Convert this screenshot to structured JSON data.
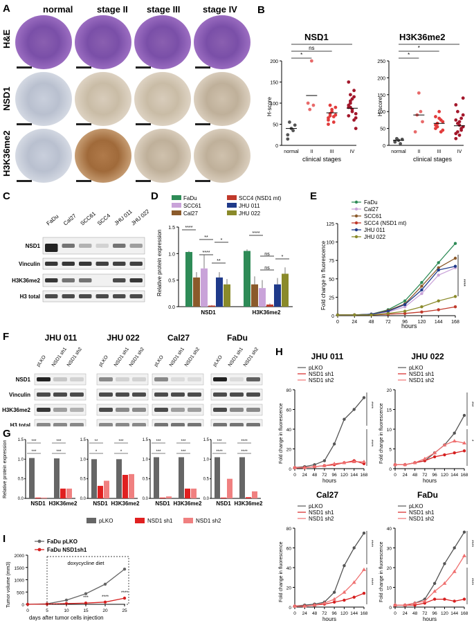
{
  "panelA": {
    "label": "A",
    "columns": [
      "normal",
      "stage II",
      "stage III",
      "stage IV"
    ],
    "rows": [
      "H&E",
      "NSD1",
      "H3K36me2"
    ]
  },
  "panelB": {
    "label": "B",
    "xaxis_caption": "clinical stages",
    "ylabel": "H-score",
    "charts": [
      {
        "title": "NSD1",
        "categories": [
          "normal",
          "II",
          "III",
          "IV"
        ],
        "sig": [
          "*",
          "ns",
          "*"
        ]
      },
      {
        "title": "H3K36me2",
        "categories": [
          "normal",
          "II",
          "III",
          "IV"
        ],
        "sig": [
          "*",
          "*",
          "*"
        ]
      }
    ]
  },
  "panelC": {
    "label": "C",
    "lanes": [
      "FaDu",
      "Cal27",
      "SCC61",
      "SCC4",
      "JHU 011",
      "JHU 022"
    ],
    "rows": [
      "NSD1",
      "Vinculin",
      "H3K36me2",
      "H3 total"
    ]
  },
  "panelD": {
    "label": "D",
    "legend": [
      "FaDu",
      "SCC61",
      "Cal27",
      "SCC4 (NSD1 mt)",
      "JHU 011",
      "JHU 022"
    ],
    "sig": [
      "****",
      "**",
      "*",
      "****",
      "**",
      "****",
      "ns",
      "ns",
      "*"
    ]
  },
  "panelE": {
    "label": "E",
    "legend": [
      "FaDu",
      "Cal27",
      "SCC61",
      "SCC4 (NSD1 mt)",
      "JHU 011",
      "JHU 022"
    ],
    "sig": "****"
  },
  "panelF": {
    "label": "F",
    "groups": [
      "JHU 011",
      "JHU 022",
      "Cal27",
      "FaDu"
    ],
    "lanes": [
      "pLKO",
      "NSD1 sh1",
      "NSD1 sh2"
    ],
    "rows": [
      "NSD1",
      "Vinculin",
      "H3K36me2",
      "H3 total"
    ]
  },
  "panelG": {
    "label": "G",
    "legend": [
      "pLKO",
      "NSD1 sh1",
      "NSD1 sh2"
    ],
    "sig": [
      [
        "***",
        "***",
        "***",
        "***"
      ],
      [
        "**",
        "***",
        "*",
        "*"
      ],
      [
        "***",
        "***",
        "***",
        "***"
      ],
      [
        "***",
        "****",
        "****",
        "****"
      ]
    ]
  },
  "panelH": {
    "label": "H",
    "legend": [
      "pLKO",
      "NSD1 sh1",
      "NSD1 sh2"
    ],
    "sig": [
      [
        "****",
        "****"
      ],
      [
        "***",
        "*"
      ],
      [
        "****",
        "****"
      ],
      [
        "****",
        "****"
      ]
    ]
  },
  "panelI": {
    "label": "I",
    "legend": [
      "FaDu pLKO",
      "FaDu NSD1sh1"
    ],
    "annotation": "doxycycline diet",
    "sig": [
      "***",
      "****",
      "****"
    ]
  },
  "chart_data": [
    {
      "type": "scatter",
      "title": "NSD1",
      "categories": [
        "normal",
        "II",
        "III",
        "IV"
      ],
      "ylabel": "H-score",
      "xlabel": "clinical stages",
      "ylim": [
        0,
        200
      ],
      "yticks": [
        0,
        50,
        100,
        150,
        200
      ],
      "series": [
        {
          "values": [
            [
              25,
              55,
              40,
              35,
              48,
              15
            ],
            [
              100,
              85,
              200,
              95
            ],
            [
              65,
              70,
              80,
              55,
              90,
              60,
              75,
              85,
              68,
              72,
              50,
              95
            ],
            [
              90,
              120,
              110,
              60,
              75,
              95,
              100,
              85,
              130,
              40,
              70,
              105,
              80,
              115,
              65,
              150,
              90
            ]
          ]
        }
      ],
      "means": [
        40,
        118,
        77,
        88
      ]
    },
    {
      "type": "scatter",
      "title": "H3K36me2",
      "categories": [
        "normal",
        "II",
        "III",
        "IV"
      ],
      "ylabel": "H-score",
      "xlabel": "clinical stages",
      "ylim": [
        0,
        250
      ],
      "yticks": [
        0,
        50,
        100,
        150,
        200,
        250
      ],
      "series": [
        {
          "values": [
            [
              10,
              20,
              15,
              5,
              18,
              12
            ],
            [
              40,
              90,
              155,
              100,
              70
            ],
            [
              50,
              65,
              80,
              40,
              70,
              60,
              55,
              100,
              75,
              45,
              85,
              65
            ],
            [
              20,
              40,
              60,
              80,
              55,
              35,
              100,
              70,
              45,
              90,
              120,
              65,
              30,
              50,
              140,
              75
            ]
          ]
        }
      ],
      "means": [
        15,
        90,
        65,
        58
      ]
    },
    {
      "type": "bar",
      "title": "",
      "categories": [
        "NSD1",
        "H3K36me2"
      ],
      "ylabel": "Relative protein expression",
      "ylim": [
        0,
        1.5
      ],
      "yticks": [
        0,
        0.5,
        1.0,
        1.5
      ],
      "series": [
        {
          "name": "FaDu",
          "values": [
            1.03,
            1.05
          ]
        },
        {
          "name": "Cal27",
          "values": [
            0.55,
            0.42
          ]
        },
        {
          "name": "SCC61",
          "values": [
            0.72,
            0.35
          ]
        },
        {
          "name": "SCC4 (NSD1 mt)",
          "values": [
            0.02,
            0.04
          ]
        },
        {
          "name": "JHU 011",
          "values": [
            0.55,
            0.42
          ]
        },
        {
          "name": "JHU 022",
          "values": [
            0.42,
            0.62
          ]
        }
      ],
      "errors": [
        [
          0.02,
          0.03
        ],
        [
          0.1,
          0.15
        ],
        [
          0.25,
          0.15
        ],
        [
          0.01,
          0.02
        ],
        [
          0.1,
          0.12
        ],
        [
          0.1,
          0.12
        ]
      ]
    },
    {
      "type": "line",
      "title": "",
      "x": [
        0,
        24,
        48,
        72,
        96,
        120,
        144,
        168
      ],
      "xlabel": "hours",
      "ylabel": "Fold change in fluorescence",
      "ylim": [
        0,
        125
      ],
      "yticks": [
        0,
        25,
        50,
        75,
        100,
        125
      ],
      "series": [
        {
          "name": "FaDu",
          "values": [
            1,
            1,
            2,
            8,
            20,
            45,
            72,
            98
          ]
        },
        {
          "name": "Cal27",
          "values": [
            1,
            1,
            2,
            5,
            12,
            30,
            55,
            65
          ]
        },
        {
          "name": "SCC61",
          "values": [
            1,
            1,
            2,
            7,
            16,
            40,
            65,
            78
          ]
        },
        {
          "name": "SCC4 (NSD1 mt)",
          "values": [
            1,
            1,
            1,
            2,
            3,
            5,
            8,
            12
          ]
        },
        {
          "name": "JHU 011",
          "values": [
            1,
            1,
            2,
            6,
            15,
            35,
            62,
            67
          ]
        },
        {
          "name": "JHU 022",
          "values": [
            1,
            1,
            1,
            3,
            6,
            12,
            20,
            26
          ]
        }
      ]
    },
    {
      "type": "bar",
      "title": "",
      "categories": [
        "NSD1",
        "H3K36me2"
      ],
      "ylabel": "Relative protein expression",
      "ylim": [
        0,
        1.5
      ],
      "yticks": [
        0,
        0.5,
        1.0,
        1.5
      ],
      "panels": [
        {
          "group": "JHU 011",
          "series": [
            {
              "name": "pLKO",
              "values": [
                1.03,
                1.02
              ]
            },
            {
              "name": "NSD1 sh1",
              "values": [
                0.02,
                0.25
              ]
            },
            {
              "name": "NSD1 sh2",
              "values": [
                0.02,
                0.25
              ]
            }
          ]
        },
        {
          "group": "JHU 022",
          "series": [
            {
              "name": "pLKO",
              "values": [
                1.0,
                1.0
              ]
            },
            {
              "name": "NSD1 sh1",
              "values": [
                0.32,
                0.6
              ]
            },
            {
              "name": "NSD1 sh2",
              "values": [
                0.45,
                0.62
              ]
            }
          ]
        },
        {
          "group": "Cal27",
          "series": [
            {
              "name": "pLKO",
              "values": [
                1.05,
                1.05
              ]
            },
            {
              "name": "NSD1 sh1",
              "values": [
                0.02,
                0.25
              ]
            },
            {
              "name": "NSD1 sh2",
              "values": [
                0.05,
                0.25
              ]
            }
          ]
        },
        {
          "group": "FaDu",
          "series": [
            {
              "name": "pLKO",
              "values": [
                1.05,
                1.05
              ]
            },
            {
              "name": "NSD1 sh1",
              "values": [
                0.02,
                0.03
              ]
            },
            {
              "name": "NSD1 sh2",
              "values": [
                0.5,
                0.18
              ]
            }
          ]
        }
      ]
    },
    {
      "type": "line",
      "title": "JHU 011",
      "x": [
        0,
        24,
        48,
        72,
        96,
        120,
        144,
        168
      ],
      "xlabel": "hours",
      "ylabel": "Fold change in fluorescence",
      "ylim": [
        0,
        80
      ],
      "yticks": [
        0,
        20,
        40,
        60,
        80
      ],
      "series": [
        {
          "name": "pLKO",
          "values": [
            1,
            2,
            4,
            8,
            25,
            50,
            60,
            72
          ]
        },
        {
          "name": "NSD1 sh1",
          "values": [
            1,
            1,
            2,
            3,
            4,
            6,
            8,
            5
          ]
        },
        {
          "name": "NSD1 sh2",
          "values": [
            1,
            1,
            2,
            3,
            5,
            6,
            7,
            7
          ]
        }
      ]
    },
    {
      "type": "line",
      "title": "JHU 022",
      "x": [
        0,
        24,
        48,
        72,
        96,
        120,
        144,
        168
      ],
      "xlabel": "hours",
      "ylabel": "Fold change in fluorescence",
      "ylim": [
        0,
        20
      ],
      "yticks": [
        0,
        5,
        10,
        15,
        20
      ],
      "series": [
        {
          "name": "pLKO",
          "values": [
            1,
            1,
            1.5,
            2,
            4,
            6,
            9,
            13.5
          ]
        },
        {
          "name": "NSD1 sh1",
          "values": [
            1,
            1,
            1.5,
            2,
            3,
            3.5,
            4,
            4.5
          ]
        },
        {
          "name": "NSD1 sh2",
          "values": [
            1,
            1,
            1.5,
            2.5,
            4,
            6,
            7,
            6.5
          ]
        }
      ]
    },
    {
      "type": "line",
      "title": "Cal27",
      "x": [
        0,
        24,
        48,
        72,
        96,
        120,
        144,
        168
      ],
      "xlabel": "hours",
      "ylabel": "Fold change in fluorescence",
      "ylim": [
        0,
        80
      ],
      "yticks": [
        0,
        20,
        40,
        60,
        80
      ],
      "series": [
        {
          "name": "pLKO",
          "values": [
            1,
            2,
            3,
            5,
            15,
            42,
            60,
            75
          ]
        },
        {
          "name": "NSD1 sh1",
          "values": [
            1,
            1,
            2,
            3,
            5,
            7,
            10,
            14
          ]
        },
        {
          "name": "NSD1 sh2",
          "values": [
            1,
            1,
            2,
            4,
            8,
            15,
            25,
            38
          ]
        }
      ]
    },
    {
      "type": "line",
      "title": "FaDu",
      "x": [
        0,
        24,
        48,
        72,
        96,
        120,
        144,
        168
      ],
      "xlabel": "hours",
      "ylabel": "Fold change in fluorescence",
      "ylim": [
        0,
        40
      ],
      "yticks": [
        0,
        10,
        20,
        30,
        40
      ],
      "series": [
        {
          "name": "pLKO",
          "values": [
            1,
            1,
            2,
            4,
            12,
            22,
            30,
            38
          ]
        },
        {
          "name": "NSD1 sh1",
          "values": [
            1,
            1,
            1,
            2,
            4,
            4,
            3,
            4
          ]
        },
        {
          "name": "NSD1 sh2",
          "values": [
            1,
            1,
            2,
            3,
            8,
            12,
            18,
            26
          ]
        }
      ]
    },
    {
      "type": "line",
      "title": "",
      "x": [
        0,
        5,
        10,
        15,
        20,
        25
      ],
      "xlabel": "days after tumor cells injection",
      "ylabel": "Tumor volume (mm3)",
      "ylim": [
        0,
        2000
      ],
      "yticks": [
        0,
        500,
        1000,
        1500,
        2000
      ],
      "series": [
        {
          "name": "FaDu pLKO",
          "values": [
            0,
            20,
            170,
            430,
            820,
            1430
          ]
        },
        {
          "name": "FaDu NSD1sh1",
          "values": [
            0,
            10,
            30,
            50,
            90,
            250
          ]
        }
      ]
    }
  ]
}
